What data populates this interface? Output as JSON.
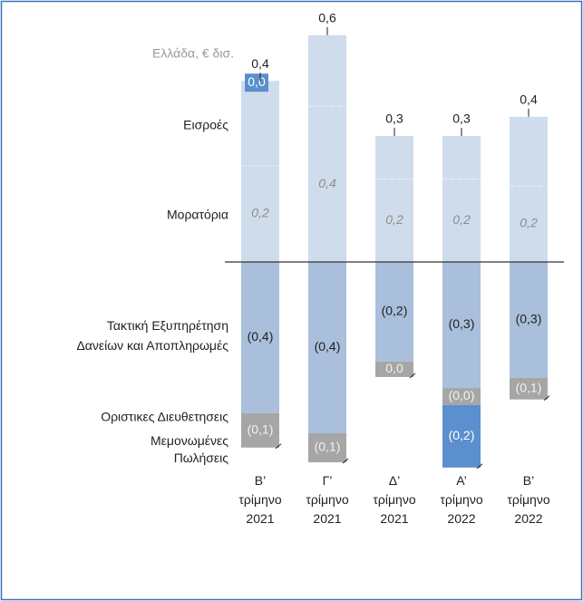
{
  "chart_data": {
    "type": "bar",
    "subtitle": "Ελλάδα, € δισ.",
    "categories": [
      "Β’ τρίμηνο 2021",
      "Γ’ τρίμηνο 2021",
      "Δ’ τρίμηνο 2021",
      "Α’ τρίμηνο 2022",
      "Β’ τρίμηνο 2022"
    ],
    "series": [
      {
        "name": "Εισροές",
        "color": "#cfdcec",
        "values": [
          0.208,
          0.174,
          0.105,
          0.105,
          0.169
        ]
      },
      {
        "name": "Μορατόρια",
        "color": "#cfdcec",
        "values": [
          0.236,
          0.382,
          0.204,
          0.204,
          0.187
        ],
        "value_labels": [
          "0,2",
          "0,4",
          "0,2",
          "0,2",
          "0,2"
        ]
      },
      {
        "name": "Τακτική Εξυπηρέτηση\nΔανείων  και Αποπληρωμές",
        "color": "#a9bfdb",
        "values": [
          -0.371,
          -0.42,
          -0.244,
          -0.309,
          -0.284
        ],
        "value_labels": [
          "(0,4)",
          "(0,4)",
          "(0,2)",
          "(0,3)",
          "(0,3)"
        ]
      },
      {
        "name": "Οριστικες Διευθετησεις",
        "color": "#a6a6a6",
        "values": [
          -0.084,
          -0.071,
          -0.038,
          -0.042,
          -0.053
        ],
        "value_labels": [
          "(0,1)",
          "(0,1)",
          "0,0",
          "(0,0)",
          "(0,1)"
        ]
      },
      {
        "name": "Μεμονωμένες\nΠωλήσεις",
        "color": "#5b8fcd",
        "values": [
          0,
          null,
          null,
          -0.153,
          null
        ],
        "value_labels": [
          "0,0",
          null,
          null,
          "(0,2)",
          null
        ]
      }
    ],
    "totals": {
      "values": [
        0.444,
        0.556,
        0.309,
        0.309,
        0.356
      ],
      "value_labels": [
        "0,4",
        "0,6",
        "0,3",
        "0,3",
        "0,4"
      ]
    },
    "ylim": [
      -0.6,
      0.65
    ]
  }
}
